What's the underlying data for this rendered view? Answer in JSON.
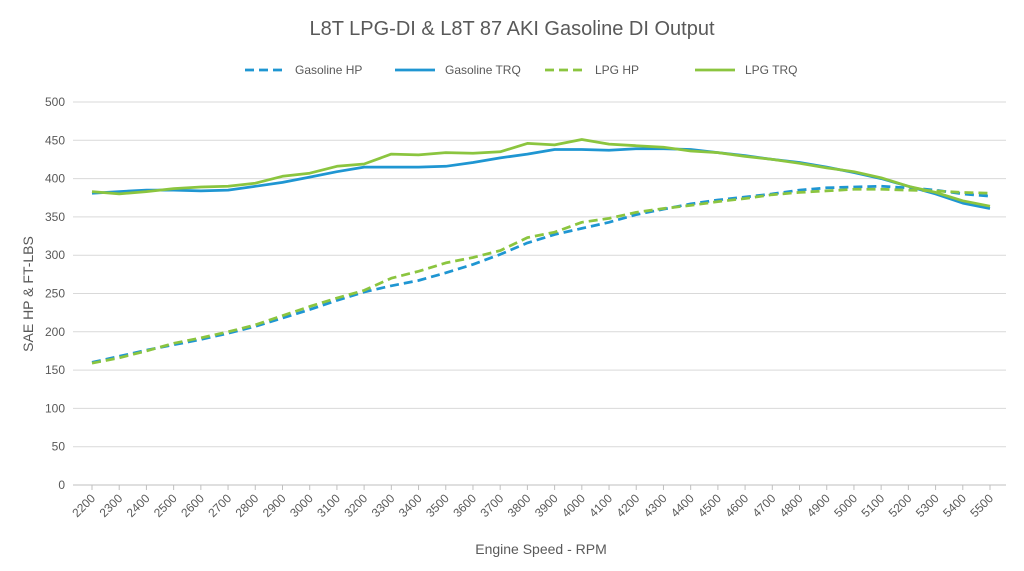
{
  "chart_data": {
    "type": "line",
    "title": "L8T LPG-DI   &  L8T  87 AKI Gasoline DI   Output",
    "xlabel": "Engine Speed - RPM",
    "ylabel": "SAE HP & FT-LBS",
    "ylim": [
      0,
      500
    ],
    "yticks": [
      "0",
      "50",
      "100",
      "150",
      "200",
      "250",
      "300",
      "350",
      "400",
      "450",
      "500"
    ],
    "grid": true,
    "legend_position": "top",
    "categories": [
      "2200",
      "2300",
      "2400",
      "2500",
      "2600",
      "2700",
      "2800",
      "2900",
      "3000",
      "3100",
      "3200",
      "3300",
      "3400",
      "3500",
      "3600",
      "3700",
      "3800",
      "3900",
      "4000",
      "4100",
      "4200",
      "4300",
      "4400",
      "4500",
      "4600",
      "4700",
      "4800",
      "4900",
      "5000",
      "5100",
      "5200",
      "5300",
      "5400",
      "5500"
    ],
    "series": [
      {
        "name": "Gasoline HP",
        "color": "#1f96d2",
        "dash": "dashed",
        "values": [
          160,
          168,
          176,
          183,
          190,
          198,
          207,
          218,
          229,
          241,
          252,
          260,
          267,
          277,
          288,
          301,
          316,
          327,
          335,
          343,
          353,
          360,
          367,
          372,
          376,
          380,
          385,
          388,
          389,
          390,
          388,
          385,
          380,
          377
        ]
      },
      {
        "name": "Gasoline TRQ",
        "color": "#1f96d2",
        "dash": "solid",
        "values": [
          381,
          383,
          385,
          385,
          384,
          385,
          390,
          395,
          402,
          409,
          415,
          415,
          415,
          416,
          421,
          427,
          432,
          438,
          438,
          437,
          439,
          439,
          438,
          434,
          430,
          425,
          421,
          415,
          408,
          400,
          390,
          380,
          368,
          361
        ]
      },
      {
        "name": "LPG HP",
        "color": "#8bc53f",
        "dash": "dashed",
        "values": [
          159,
          166,
          175,
          185,
          192,
          200,
          209,
          221,
          233,
          244,
          254,
          270,
          279,
          290,
          297,
          306,
          323,
          330,
          343,
          348,
          356,
          361,
          365,
          370,
          374,
          379,
          382,
          384,
          386,
          386,
          385,
          384,
          382,
          381
        ]
      },
      {
        "name": "LPG TRQ",
        "color": "#8bc53f",
        "dash": "solid",
        "values": [
          383,
          380,
          383,
          387,
          389,
          390,
          394,
          403,
          407,
          416,
          419,
          432,
          431,
          434,
          433,
          435,
          446,
          444,
          451,
          445,
          443,
          441,
          436,
          434,
          429,
          425,
          420,
          414,
          409,
          401,
          390,
          382,
          371,
          364
        ]
      }
    ]
  }
}
